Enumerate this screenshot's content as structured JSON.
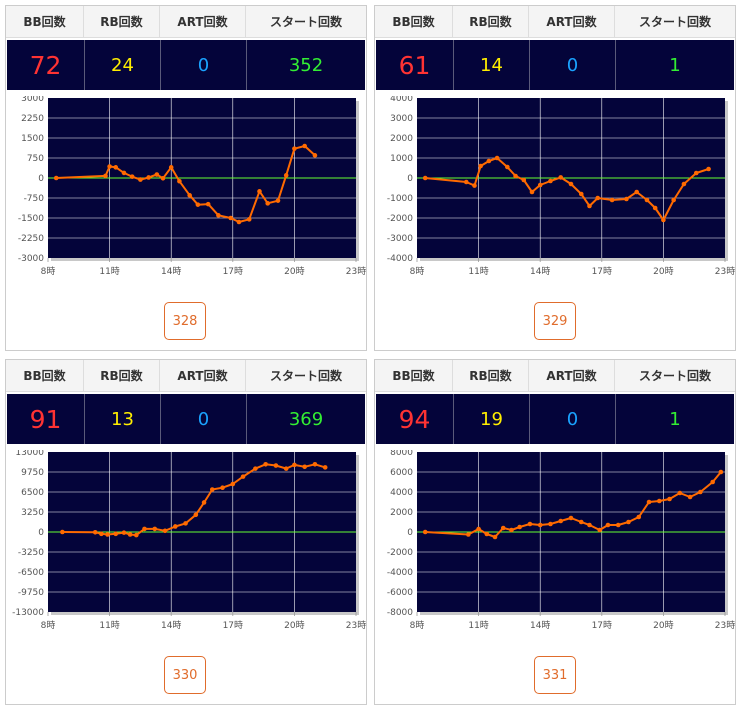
{
  "headers": {
    "bb": "BB回数",
    "rb": "RB回数",
    "art": "ART回数",
    "start": "スタート回数"
  },
  "colors": {
    "bb": "#ff3333",
    "rb": "#ffee00",
    "art": "#1aa3ff",
    "start": "#33ee33",
    "line": "#ff6a00",
    "zero": "#66ff33",
    "plot_bg": "#04043a"
  },
  "cards": [
    {
      "stats": {
        "bb": "72",
        "rb": "24",
        "art": "0",
        "start": "352"
      },
      "button": "328",
      "chart_data": {
        "type": "line",
        "ylim": [
          -3000,
          3000
        ],
        "yticks": [
          "3000",
          "2250",
          "1500",
          "750",
          "0",
          "-750",
          "-1500",
          "-2250",
          "-3000"
        ],
        "xlim": [
          8,
          23
        ],
        "xticks": [
          "8時",
          "11時",
          "14時",
          "17時",
          "20時",
          "23時"
        ],
        "points": [
          [
            8.4,
            0
          ],
          [
            10.8,
            80
          ],
          [
            11,
            430
          ],
          [
            11.3,
            400
          ],
          [
            11.7,
            190
          ],
          [
            12.1,
            50
          ],
          [
            12.5,
            -60
          ],
          [
            12.9,
            20
          ],
          [
            13.3,
            130
          ],
          [
            13.6,
            -10
          ],
          [
            14,
            400
          ],
          [
            14.4,
            -120
          ],
          [
            14.9,
            -650
          ],
          [
            15.3,
            -1000
          ],
          [
            15.8,
            -980
          ],
          [
            16.3,
            -1400
          ],
          [
            16.9,
            -1500
          ],
          [
            17.3,
            -1650
          ],
          [
            17.8,
            -1550
          ],
          [
            18.3,
            -500
          ],
          [
            18.7,
            -950
          ],
          [
            19.2,
            -850
          ],
          [
            19.6,
            100
          ],
          [
            20,
            1100
          ],
          [
            20.5,
            1200
          ],
          [
            21,
            850
          ]
        ]
      }
    },
    {
      "stats": {
        "bb": "61",
        "rb": "14",
        "art": "0",
        "start": "1"
      },
      "button": "329",
      "chart_data": {
        "type": "line",
        "ylim": [
          -4000,
          4000
        ],
        "yticks": [
          "4000",
          "3000",
          "2000",
          "1000",
          "0",
          "-1000",
          "-2000",
          "-3000",
          "-4000"
        ],
        "xlim": [
          8,
          23
        ],
        "xticks": [
          "8時",
          "11時",
          "14時",
          "17時",
          "20時",
          "23時"
        ],
        "points": [
          [
            8.4,
            0
          ],
          [
            10.4,
            -200
          ],
          [
            10.8,
            -380
          ],
          [
            11.1,
            600
          ],
          [
            11.5,
            850
          ],
          [
            11.9,
            1000
          ],
          [
            12.4,
            550
          ],
          [
            12.8,
            100
          ],
          [
            13.2,
            -100
          ],
          [
            13.6,
            -700
          ],
          [
            14,
            -350
          ],
          [
            14.5,
            -150
          ],
          [
            15,
            30
          ],
          [
            15.5,
            -300
          ],
          [
            16,
            -800
          ],
          [
            16.4,
            -1400
          ],
          [
            16.8,
            -1000
          ],
          [
            17.5,
            -1100
          ],
          [
            18.2,
            -1050
          ],
          [
            18.7,
            -700
          ],
          [
            19.2,
            -1100
          ],
          [
            19.6,
            -1500
          ],
          [
            20,
            -2100
          ],
          [
            20.5,
            -1100
          ],
          [
            21,
            -300
          ],
          [
            21.6,
            250
          ],
          [
            22.2,
            450
          ]
        ]
      }
    },
    {
      "stats": {
        "bb": "91",
        "rb": "13",
        "art": "0",
        "start": "369"
      },
      "button": "330",
      "chart_data": {
        "type": "line",
        "ylim": [
          -13000,
          13000
        ],
        "yticks": [
          "13000",
          "9750",
          "6500",
          "3250",
          "0",
          "-3250",
          "-6500",
          "-9750",
          "-13000"
        ],
        "xlim": [
          8,
          23
        ],
        "xticks": [
          "8時",
          "11時",
          "14時",
          "17時",
          "20時",
          "23時"
        ],
        "points": [
          [
            8.7,
            0
          ],
          [
            10.3,
            -50
          ],
          [
            10.6,
            -300
          ],
          [
            10.9,
            -400
          ],
          [
            11.3,
            -300
          ],
          [
            11.7,
            -100
          ],
          [
            12,
            -400
          ],
          [
            12.3,
            -500
          ],
          [
            12.7,
            500
          ],
          [
            13.2,
            500
          ],
          [
            13.7,
            200
          ],
          [
            14.2,
            900
          ],
          [
            14.7,
            1400
          ],
          [
            15.2,
            2800
          ],
          [
            15.6,
            4800
          ],
          [
            16,
            6900
          ],
          [
            16.5,
            7200
          ],
          [
            17,
            7800
          ],
          [
            17.5,
            9000
          ],
          [
            18.1,
            10300
          ],
          [
            18.6,
            11000
          ],
          [
            19.1,
            10800
          ],
          [
            19.6,
            10300
          ],
          [
            20,
            10900
          ],
          [
            20.5,
            10600
          ],
          [
            21,
            11000
          ],
          [
            21.5,
            10500
          ]
        ]
      }
    },
    {
      "stats": {
        "bb": "94",
        "rb": "19",
        "art": "0",
        "start": "1"
      },
      "button": "331",
      "chart_data": {
        "type": "line",
        "ylim": [
          -8000,
          8000
        ],
        "yticks": [
          "8000",
          "6000",
          "4000",
          "2000",
          "0",
          "-2000",
          "-4000",
          "-6000",
          "-8000"
        ],
        "xlim": [
          8,
          23
        ],
        "xticks": [
          "8時",
          "11時",
          "14時",
          "17時",
          "20時",
          "23時"
        ],
        "points": [
          [
            8.4,
            0
          ],
          [
            10.5,
            -250
          ],
          [
            11,
            300
          ],
          [
            11.4,
            -200
          ],
          [
            11.8,
            -500
          ],
          [
            12.2,
            400
          ],
          [
            12.6,
            200
          ],
          [
            13,
            500
          ],
          [
            13.5,
            800
          ],
          [
            14,
            700
          ],
          [
            14.5,
            800
          ],
          [
            15,
            1100
          ],
          [
            15.5,
            1400
          ],
          [
            16,
            1000
          ],
          [
            16.4,
            700
          ],
          [
            16.9,
            200
          ],
          [
            17.3,
            700
          ],
          [
            17.8,
            700
          ],
          [
            18.3,
            1000
          ],
          [
            18.8,
            1500
          ],
          [
            19.3,
            3000
          ],
          [
            19.8,
            3100
          ],
          [
            20.3,
            3300
          ],
          [
            20.8,
            3900
          ],
          [
            21.3,
            3500
          ],
          [
            21.8,
            4000
          ],
          [
            22.4,
            5000
          ],
          [
            22.8,
            6000
          ]
        ]
      }
    }
  ]
}
